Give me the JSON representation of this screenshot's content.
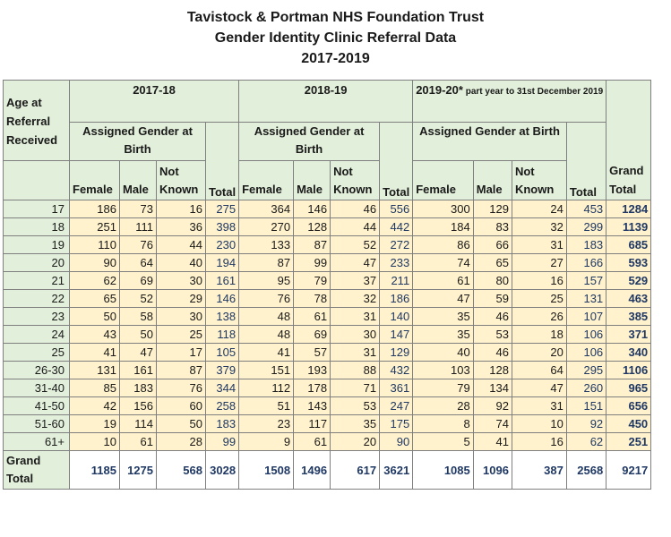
{
  "title": {
    "line1": "Tavistock & Portman NHS Foundation Trust",
    "line2": "Gender Identity Clinic Referral Data",
    "line3": "2017-2019"
  },
  "header": {
    "age_label": "Age at Referral Received",
    "period1": "2017-18",
    "period2": "2018-19",
    "period3_main": "2019-20*",
    "period3_note": " part year to 31st December 2019",
    "assigned_gender": "Assigned Gender at Birth",
    "female": "Female",
    "male": "Male",
    "not_known": "Not Known",
    "total": "Total",
    "grand_total": "Grand Total"
  },
  "rows": [
    {
      "age": "17",
      "v": [
        "186",
        "73",
        "16",
        "275",
        "364",
        "146",
        "46",
        "556",
        "300",
        "129",
        "24",
        "453"
      ],
      "grand": "1284"
    },
    {
      "age": "18",
      "v": [
        "251",
        "111",
        "36",
        "398",
        "270",
        "128",
        "44",
        "442",
        "184",
        "83",
        "32",
        "299"
      ],
      "grand": "1139"
    },
    {
      "age": "19",
      "v": [
        "110",
        "76",
        "44",
        "230",
        "133",
        "87",
        "52",
        "272",
        "86",
        "66",
        "31",
        "183"
      ],
      "grand": "685"
    },
    {
      "age": "20",
      "v": [
        "90",
        "64",
        "40",
        "194",
        "87",
        "99",
        "47",
        "233",
        "74",
        "65",
        "27",
        "166"
      ],
      "grand": "593"
    },
    {
      "age": "21",
      "v": [
        "62",
        "69",
        "30",
        "161",
        "95",
        "79",
        "37",
        "211",
        "61",
        "80",
        "16",
        "157"
      ],
      "grand": "529"
    },
    {
      "age": "22",
      "v": [
        "65",
        "52",
        "29",
        "146",
        "76",
        "78",
        "32",
        "186",
        "47",
        "59",
        "25",
        "131"
      ],
      "grand": "463"
    },
    {
      "age": "23",
      "v": [
        "50",
        "58",
        "30",
        "138",
        "48",
        "61",
        "31",
        "140",
        "35",
        "46",
        "26",
        "107"
      ],
      "grand": "385"
    },
    {
      "age": "24",
      "v": [
        "43",
        "50",
        "25",
        "118",
        "48",
        "69",
        "30",
        "147",
        "35",
        "53",
        "18",
        "106"
      ],
      "grand": "371"
    },
    {
      "age": "25",
      "v": [
        "41",
        "47",
        "17",
        "105",
        "41",
        "57",
        "31",
        "129",
        "40",
        "46",
        "20",
        "106"
      ],
      "grand": "340"
    },
    {
      "age": "26-30",
      "v": [
        "131",
        "161",
        "87",
        "379",
        "151",
        "193",
        "88",
        "432",
        "103",
        "128",
        "64",
        "295"
      ],
      "grand": "1106"
    },
    {
      "age": "31-40",
      "v": [
        "85",
        "183",
        "76",
        "344",
        "112",
        "178",
        "71",
        "361",
        "79",
        "134",
        "47",
        "260"
      ],
      "grand": "965"
    },
    {
      "age": "41-50",
      "v": [
        "42",
        "156",
        "60",
        "258",
        "51",
        "143",
        "53",
        "247",
        "28",
        "92",
        "31",
        "151"
      ],
      "grand": "656"
    },
    {
      "age": "51-60",
      "v": [
        "19",
        "114",
        "50",
        "183",
        "23",
        "117",
        "35",
        "175",
        "8",
        "74",
        "10",
        "92"
      ],
      "grand": "450"
    },
    {
      "age": "61+",
      "v": [
        "10",
        "61",
        "28",
        "99",
        "9",
        "61",
        "20",
        "90",
        "5",
        "41",
        "16",
        "62"
      ],
      "grand": "251"
    }
  ],
  "grand_row": {
    "label": "Grand Total",
    "v": [
      "1185",
      "1275",
      "568",
      "3028",
      "1508",
      "1496",
      "617",
      "3621",
      "1085",
      "1096",
      "387",
      "2568"
    ],
    "grand": "9217"
  },
  "colors": {
    "header_bg": "#e2efda",
    "data_bg": "#fff2cc",
    "total_text": "#1f3864"
  }
}
